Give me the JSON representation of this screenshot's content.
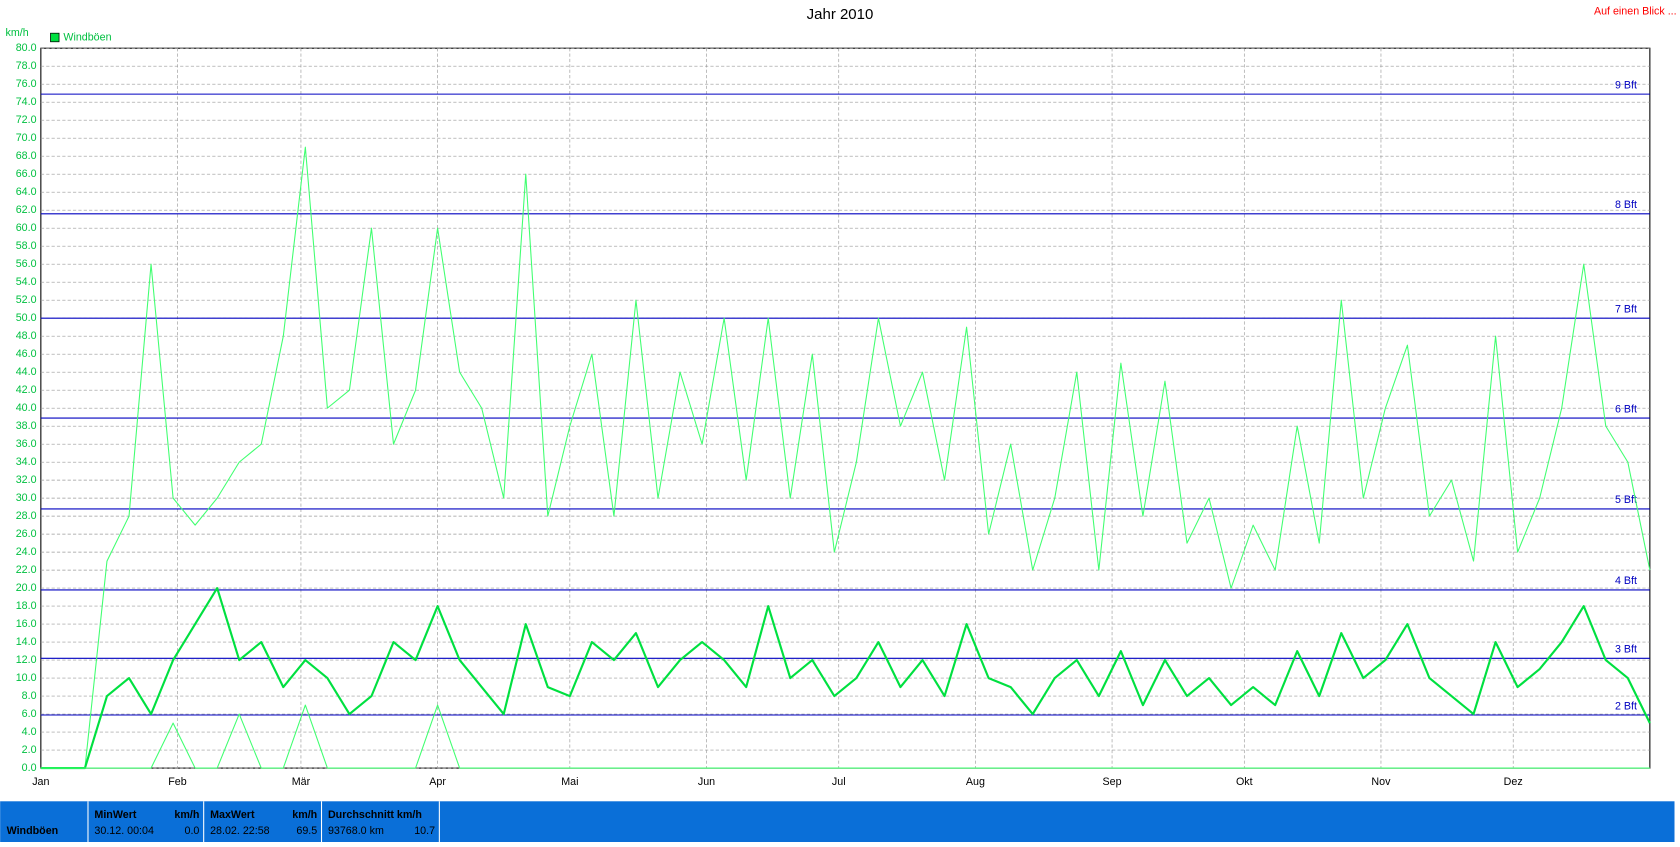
{
  "chart_data": {
    "type": "line",
    "title": "Jahr 2010",
    "y_label": "km/h",
    "header_link": "Auf einen Blick ...",
    "legend": "top-left",
    "grid": true,
    "xlim": [
      0,
      365
    ],
    "ylim": [
      0,
      80
    ],
    "xticks": [
      {
        "value": 0,
        "label": "Jan"
      },
      {
        "value": 31,
        "label": "Feb"
      },
      {
        "value": 59,
        "label": "Mär"
      },
      {
        "value": 90,
        "label": "Apr"
      },
      {
        "value": 120,
        "label": "Mai"
      },
      {
        "value": 151,
        "label": "Jun"
      },
      {
        "value": 181,
        "label": "Jul"
      },
      {
        "value": 212,
        "label": "Aug"
      },
      {
        "value": 243,
        "label": "Sep"
      },
      {
        "value": 273,
        "label": "Okt"
      },
      {
        "value": 304,
        "label": "Nov"
      },
      {
        "value": 334,
        "label": "Dez"
      }
    ],
    "yticks": [
      {
        "value": 0,
        "label": "0.0"
      },
      {
        "value": 2,
        "label": "2.0"
      },
      {
        "value": 4,
        "label": "4.0"
      },
      {
        "value": 6,
        "label": "6.0"
      },
      {
        "value": 8,
        "label": "8.0"
      },
      {
        "value": 10,
        "label": "10.0"
      },
      {
        "value": 12,
        "label": "12.0"
      },
      {
        "value": 14,
        "label": "14.0"
      },
      {
        "value": 16,
        "label": "16.0"
      },
      {
        "value": 18,
        "label": "18.0"
      },
      {
        "value": 20,
        "label": "20.0"
      },
      {
        "value": 22,
        "label": "22.0"
      },
      {
        "value": 24,
        "label": "24.0"
      },
      {
        "value": 26,
        "label": "26.0"
      },
      {
        "value": 28,
        "label": "28.0"
      },
      {
        "value": 30,
        "label": "30.0"
      },
      {
        "value": 32,
        "label": "32.0"
      },
      {
        "value": 34,
        "label": "34.0"
      },
      {
        "value": 36,
        "label": "36.0"
      },
      {
        "value": 38,
        "label": "38.0"
      },
      {
        "value": 40,
        "label": "40.0"
      },
      {
        "value": 42,
        "label": "42.0"
      },
      {
        "value": 44,
        "label": "44.0"
      },
      {
        "value": 46,
        "label": "46.0"
      },
      {
        "value": 48,
        "label": "48.0"
      },
      {
        "value": 50,
        "label": "50.0"
      },
      {
        "value": 52,
        "label": "52.0"
      },
      {
        "value": 54,
        "label": "54.0"
      },
      {
        "value": 56,
        "label": "56.0"
      },
      {
        "value": 58,
        "label": "58.0"
      },
      {
        "value": 60,
        "label": "60.0"
      },
      {
        "value": 62,
        "label": "62.0"
      },
      {
        "value": 64,
        "label": "64.0"
      },
      {
        "value": 66,
        "label": "66.0"
      },
      {
        "value": 68,
        "label": "68.0"
      },
      {
        "value": 70,
        "label": "70.0"
      },
      {
        "value": 72,
        "label": "72.0"
      },
      {
        "value": 74,
        "label": "74.0"
      },
      {
        "value": 76,
        "label": "76.0"
      },
      {
        "value": 78,
        "label": "78.0"
      },
      {
        "value": 80,
        "label": "80.0"
      }
    ],
    "reference_lines": [
      {
        "value": 5.9,
        "label": "2 Bft"
      },
      {
        "value": 12.2,
        "label": "3 Bft"
      },
      {
        "value": 19.8,
        "label": "4 Bft"
      },
      {
        "value": 28.8,
        "label": "5 Bft"
      },
      {
        "value": 38.9,
        "label": "6 Bft"
      },
      {
        "value": 50.0,
        "label": "7 Bft"
      },
      {
        "value": 61.6,
        "label": "8 Bft"
      },
      {
        "value": 74.9,
        "label": "9 Bft"
      }
    ],
    "reference_color": "#0000c0",
    "x": [
      0,
      5,
      10,
      15,
      20,
      25,
      30,
      35,
      40,
      45,
      50,
      55,
      60,
      65,
      70,
      75,
      80,
      85,
      90,
      95,
      100,
      105,
      110,
      115,
      120,
      125,
      130,
      135,
      140,
      145,
      150,
      155,
      160,
      165,
      170,
      175,
      180,
      185,
      190,
      195,
      200,
      205,
      210,
      215,
      220,
      225,
      230,
      235,
      240,
      245,
      250,
      255,
      260,
      265,
      270,
      275,
      280,
      285,
      290,
      295,
      300,
      305,
      310,
      315,
      320,
      325,
      330,
      335,
      340,
      345,
      350,
      355,
      360,
      365
    ],
    "series": [
      {
        "color": "#40ff70",
        "width": 1,
        "values": [
          0,
          0,
          0,
          23,
          28,
          56,
          30,
          27,
          30,
          34,
          36,
          48,
          69,
          40,
          42,
          60,
          36,
          42,
          60,
          44,
          40,
          30,
          66,
          28,
          38,
          46,
          28,
          52,
          30,
          44,
          36,
          50,
          32,
          50,
          30,
          46,
          24,
          34,
          50,
          38,
          44,
          32,
          49,
          26,
          36,
          22,
          30,
          44,
          22,
          45,
          28,
          43,
          25,
          30,
          20,
          27,
          22,
          38,
          25,
          52,
          30,
          40,
          47,
          28,
          32,
          23,
          48,
          24,
          30,
          40,
          56,
          38,
          34,
          22
        ]
      },
      {
        "name": "Windböen",
        "color": "#00e040",
        "width": 2,
        "values": [
          0,
          0,
          0,
          8,
          10,
          6,
          12,
          16,
          20,
          12,
          14,
          9,
          12,
          10,
          6,
          8,
          14,
          12,
          18,
          12,
          9,
          6,
          16,
          9,
          8,
          14,
          12,
          15,
          9,
          12,
          14,
          12,
          9,
          18,
          10,
          12,
          8,
          10,
          14,
          9,
          12,
          8,
          16,
          10,
          9,
          6,
          10,
          12,
          8,
          13,
          7,
          12,
          8,
          10,
          7,
          9,
          7,
          13,
          8,
          15,
          10,
          12,
          16,
          10,
          8,
          6,
          14,
          9,
          11,
          14,
          18,
          12,
          10,
          5
        ]
      },
      {
        "color": "#40ff70",
        "width": 1,
        "values": [
          0,
          0,
          0,
          0,
          0,
          0,
          5,
          0,
          0,
          6,
          0,
          0,
          7,
          0,
          0,
          0,
          0,
          0,
          7,
          0,
          0,
          0,
          0,
          0,
          0,
          0,
          0,
          0,
          0,
          0,
          0,
          0,
          0,
          0,
          0,
          0,
          0,
          0,
          0,
          0,
          0,
          0,
          0,
          0,
          0,
          0,
          0,
          0,
          0,
          0,
          0,
          0,
          0,
          0,
          0,
          0,
          0,
          0,
          0,
          0,
          0,
          0,
          0,
          0,
          0,
          0,
          0,
          0,
          0,
          0,
          0,
          0,
          0,
          0
        ]
      }
    ]
  },
  "summary": {
    "row_label": "Windböen",
    "columns": [
      {
        "title": "MinWert",
        "unit": "km/h",
        "time": "30.12.  00:04",
        "value": "0.0"
      },
      {
        "title": "MaxWert",
        "unit": "km/h",
        "time": "28.02.  22:58",
        "value": "69.5"
      },
      {
        "title": "Durchschnitt km/h",
        "time": "93768.0 km",
        "value": "10.7"
      }
    ]
  }
}
